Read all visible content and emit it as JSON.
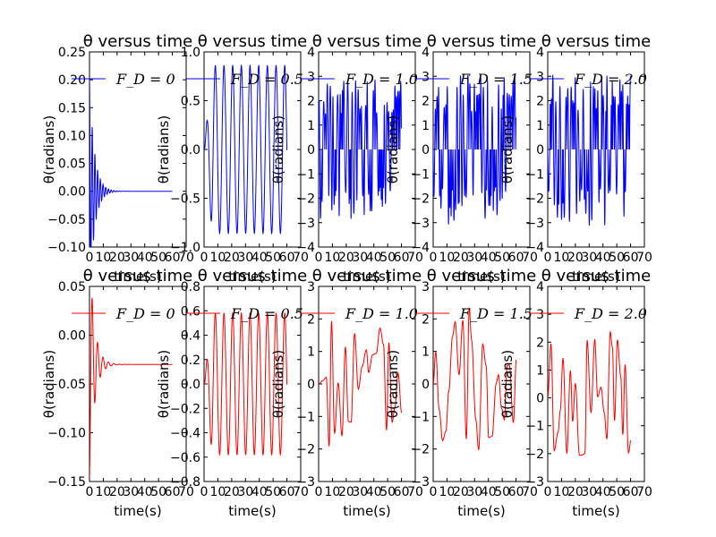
{
  "chart_data": [
    {
      "row": 0,
      "col": 0,
      "type": "line",
      "title": "θ versus time",
      "xlabel": "time(s)",
      "ylabel": "θ(radians)",
      "series_name": "F_D = 0",
      "line_color": "#0000ff",
      "xlim": [
        0,
        70
      ],
      "ylim": [
        -0.1,
        0.25
      ],
      "xticks": [
        "0",
        "10",
        "20",
        "30",
        "40",
        "50",
        "60",
        "70"
      ],
      "yticks": [
        "-0.10",
        "-0.05",
        "0.00",
        "0.05",
        "0.10",
        "0.15",
        "0.20",
        "0.25"
      ],
      "kind": "damped",
      "amp": 0.2,
      "damp": 0.28,
      "omega": 3.2,
      "x_end": 60
    },
    {
      "row": 0,
      "col": 1,
      "type": "line",
      "title": "θ versus time",
      "xlabel": "time(s)",
      "ylabel": "θ(radians)",
      "series_name": "F_D = 0.5",
      "line_color": "#0000ff",
      "xlim": [
        0,
        70
      ],
      "ylim": [
        -1.0,
        1.0
      ],
      "xticks": [
        "0",
        "10",
        "20",
        "30",
        "40",
        "50",
        "60",
        "70"
      ],
      "yticks": [
        "-1.0",
        "-0.5",
        "0.0",
        "0.5",
        "1.0"
      ],
      "kind": "periodic",
      "amp": 0.86,
      "omega": 1.0,
      "x_end": 60
    },
    {
      "row": 0,
      "col": 2,
      "type": "line",
      "title": "θ versus time",
      "xlabel": "time(s)",
      "ylabel": "θ(radians)",
      "series_name": "F_D = 1.0",
      "line_color": "#0000ff",
      "xlim": [
        0,
        70
      ],
      "ylim": [
        -4,
        4
      ],
      "xticks": [
        "0",
        "10",
        "20",
        "30",
        "40",
        "50",
        "60",
        "70"
      ],
      "yticks": [
        "-4",
        "-3",
        "-2",
        "-1",
        "0",
        "1",
        "2",
        "3",
        "4"
      ],
      "kind": "chaos",
      "amp": 2.9,
      "seed": 3,
      "x_end": 60
    },
    {
      "row": 0,
      "col": 3,
      "type": "line",
      "title": "θ versus time",
      "xlabel": "time(s)",
      "ylabel": "θ(radians)",
      "series_name": "F_D = 1.5",
      "line_color": "#0000ff",
      "xlim": [
        0,
        70
      ],
      "ylim": [
        -4,
        4
      ],
      "xticks": [
        "0",
        "10",
        "20",
        "30",
        "40",
        "50",
        "60",
        "70"
      ],
      "yticks": [
        "-4",
        "-3",
        "-2",
        "-1",
        "0",
        "1",
        "2",
        "3",
        "4"
      ],
      "kind": "chaos",
      "amp": 3.1,
      "seed": 7,
      "x_end": 60
    },
    {
      "row": 0,
      "col": 4,
      "type": "line",
      "title": "θ versus time",
      "xlabel": "time(s)",
      "ylabel": "θ(radians)",
      "series_name": "F_D = 2.0",
      "line_color": "#0000ff",
      "xlim": [
        0,
        70
      ],
      "ylim": [
        -4,
        4
      ],
      "xticks": [
        "0",
        "10",
        "20",
        "30",
        "40",
        "50",
        "60",
        "70"
      ],
      "yticks": [
        "-4",
        "-3",
        "-2",
        "-1",
        "0",
        "1",
        "2",
        "3",
        "4"
      ],
      "kind": "chaos",
      "amp": 3.14,
      "seed": 11,
      "x_end": 60
    },
    {
      "row": 1,
      "col": 0,
      "type": "line",
      "title": "θ versus time",
      "xlabel": "time(s)",
      "ylabel": "θ(radians)",
      "series_name": "F_D = 0",
      "line_color": "#ff0000",
      "xlim": [
        0,
        70
      ],
      "ylim": [
        -0.15,
        0.1
      ],
      "xticks": [
        "0",
        "10",
        "20",
        "30",
        "40",
        "50",
        "60",
        "70"
      ],
      "yticks": [
        "-0.15",
        "-0.10",
        "-0.05",
        "0.00",
        "0.05"
      ],
      "kind": "damped2",
      "amp": 0.14,
      "damp": 0.28,
      "omega": 1.6,
      "x_end": 60
    },
    {
      "row": 1,
      "col": 1,
      "type": "line",
      "title": "θ versus time",
      "xlabel": "time(s)",
      "ylabel": "θ(radians)",
      "series_name": "F_D = 0.5",
      "line_color": "#ff0000",
      "xlim": [
        0,
        70
      ],
      "ylim": [
        -0.8,
        0.8
      ],
      "xticks": [
        "0",
        "10",
        "20",
        "30",
        "40",
        "50",
        "60",
        "70"
      ],
      "yticks": [
        "-0.8",
        "-0.6",
        "-0.4",
        "-0.2",
        "0.0",
        "0.2",
        "0.4",
        "0.6",
        "0.8"
      ],
      "kind": "periodic",
      "amp": 0.58,
      "omega": 1.0,
      "x_end": 60
    },
    {
      "row": 1,
      "col": 2,
      "type": "line",
      "title": "θ versus time",
      "xlabel": "time(s)",
      "ylabel": "θ(radians)",
      "series_name": "F_D = 1.0",
      "line_color": "#ff0000",
      "xlim": [
        0,
        70
      ],
      "ylim": [
        -3,
        3
      ],
      "xticks": [
        "0",
        "10",
        "20",
        "30",
        "40",
        "50",
        "60",
        "70"
      ],
      "yticks": [
        "-3",
        "-2",
        "-1",
        "0",
        "1",
        "2",
        "3"
      ],
      "kind": "quasi",
      "amp": 2.0,
      "seed": 5,
      "x_end": 60
    },
    {
      "row": 1,
      "col": 3,
      "type": "line",
      "title": "θ versus time",
      "xlabel": "time(s)",
      "ylabel": "θ(radians)",
      "series_name": "F_D = 1.5",
      "line_color": "#ff0000",
      "xlim": [
        0,
        70
      ],
      "ylim": [
        -3,
        3
      ],
      "xticks": [
        "0",
        "10",
        "20",
        "30",
        "40",
        "50",
        "60",
        "70"
      ],
      "yticks": [
        "-3",
        "-2",
        "-1",
        "0",
        "1",
        "2",
        "3"
      ],
      "kind": "quasi",
      "amp": 2.4,
      "seed": 9,
      "x_end": 60
    },
    {
      "row": 1,
      "col": 4,
      "type": "line",
      "title": "θ versus time",
      "xlabel": "time(s)",
      "ylabel": "θ(radians)",
      "series_name": "F_D = 2.0",
      "line_color": "#ff0000",
      "xlim": [
        0,
        70
      ],
      "ylim": [
        -3,
        4
      ],
      "xticks": [
        "0",
        "10",
        "20",
        "30",
        "40",
        "50",
        "60",
        "70"
      ],
      "yticks": [
        "-3",
        "-2",
        "-1",
        "0",
        "1",
        "2",
        "3",
        "4"
      ],
      "kind": "quasi",
      "amp": 2.5,
      "seed": 13,
      "x_end": 60
    }
  ]
}
